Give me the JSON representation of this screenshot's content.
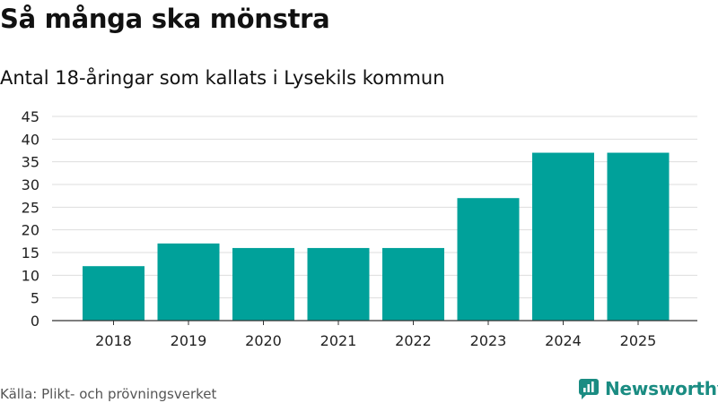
{
  "header": {
    "title": "Så många ska mönstra",
    "subtitle": "Antal 18-åringar som kallats i Lysekils kommun"
  },
  "footer": {
    "source": "Källa: Plikt- och prövningsverket",
    "brand": "Newsworthy",
    "brand_icon": "newsworthy-logo-icon"
  },
  "colors": {
    "bar": "#00a19a",
    "brand": "#1a8c82",
    "grid": "#dddddd",
    "axis": "#333333"
  },
  "chart_data": {
    "type": "bar",
    "categories": [
      "2018",
      "2019",
      "2020",
      "2021",
      "2022",
      "2023",
      "2024",
      "2025"
    ],
    "values": [
      12,
      17,
      16,
      16,
      16,
      27,
      37,
      37
    ],
    "ylim": [
      0,
      45
    ],
    "yticks": [
      0,
      5,
      10,
      15,
      20,
      25,
      30,
      35,
      40,
      45
    ],
    "grid": true,
    "legend": "none"
  }
}
